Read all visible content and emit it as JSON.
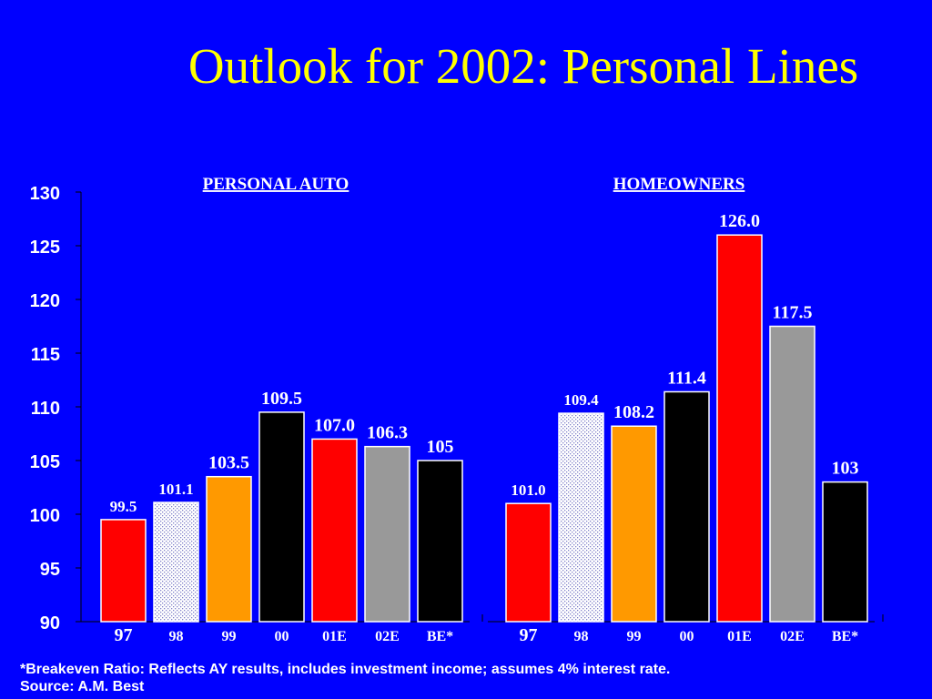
{
  "title": "Outlook for 2002: Personal Lines",
  "footnote": "*Breakeven Ratio: Reflects AY results, includes investment income; assumes 4% interest rate.",
  "source": "Source:  A.M. Best",
  "colors": {
    "background": "#0000ff",
    "title": "#ffff00",
    "red": "#ff0000",
    "orange": "#ff9900",
    "black": "#000000",
    "gray": "#999999",
    "dotted": "dotted-white"
  },
  "chart_data": {
    "type": "bar",
    "ylim": [
      90,
      130
    ],
    "yticks": [
      "90",
      "95",
      "100",
      "105",
      "110",
      "115",
      "120",
      "125",
      "130"
    ],
    "groups": [
      {
        "name": "PERSONAL AUTO",
        "categories": [
          "97",
          "98",
          "99",
          "00",
          "01E",
          "02E",
          "BE*"
        ],
        "values": [
          99.5,
          101.1,
          103.5,
          109.5,
          107.0,
          106.3,
          105
        ],
        "labels": [
          "99.5",
          "101.1",
          "103.5",
          "109.5",
          "107.0",
          "106.3",
          "105"
        ],
        "colors": [
          "red",
          "dotted",
          "orange",
          "black",
          "red",
          "gray",
          "black"
        ]
      },
      {
        "name": "HOMEOWNERS",
        "categories": [
          "97",
          "98",
          "99",
          "00",
          "01E",
          "02E",
          "BE*"
        ],
        "values": [
          101.0,
          109.4,
          108.2,
          111.4,
          126.0,
          117.5,
          103
        ],
        "labels": [
          "101.0",
          "109.4",
          "108.2",
          "111.4",
          "126.0",
          "117.5",
          "103"
        ],
        "colors": [
          "red",
          "dotted",
          "orange",
          "black",
          "red",
          "gray",
          "black"
        ]
      }
    ]
  }
}
